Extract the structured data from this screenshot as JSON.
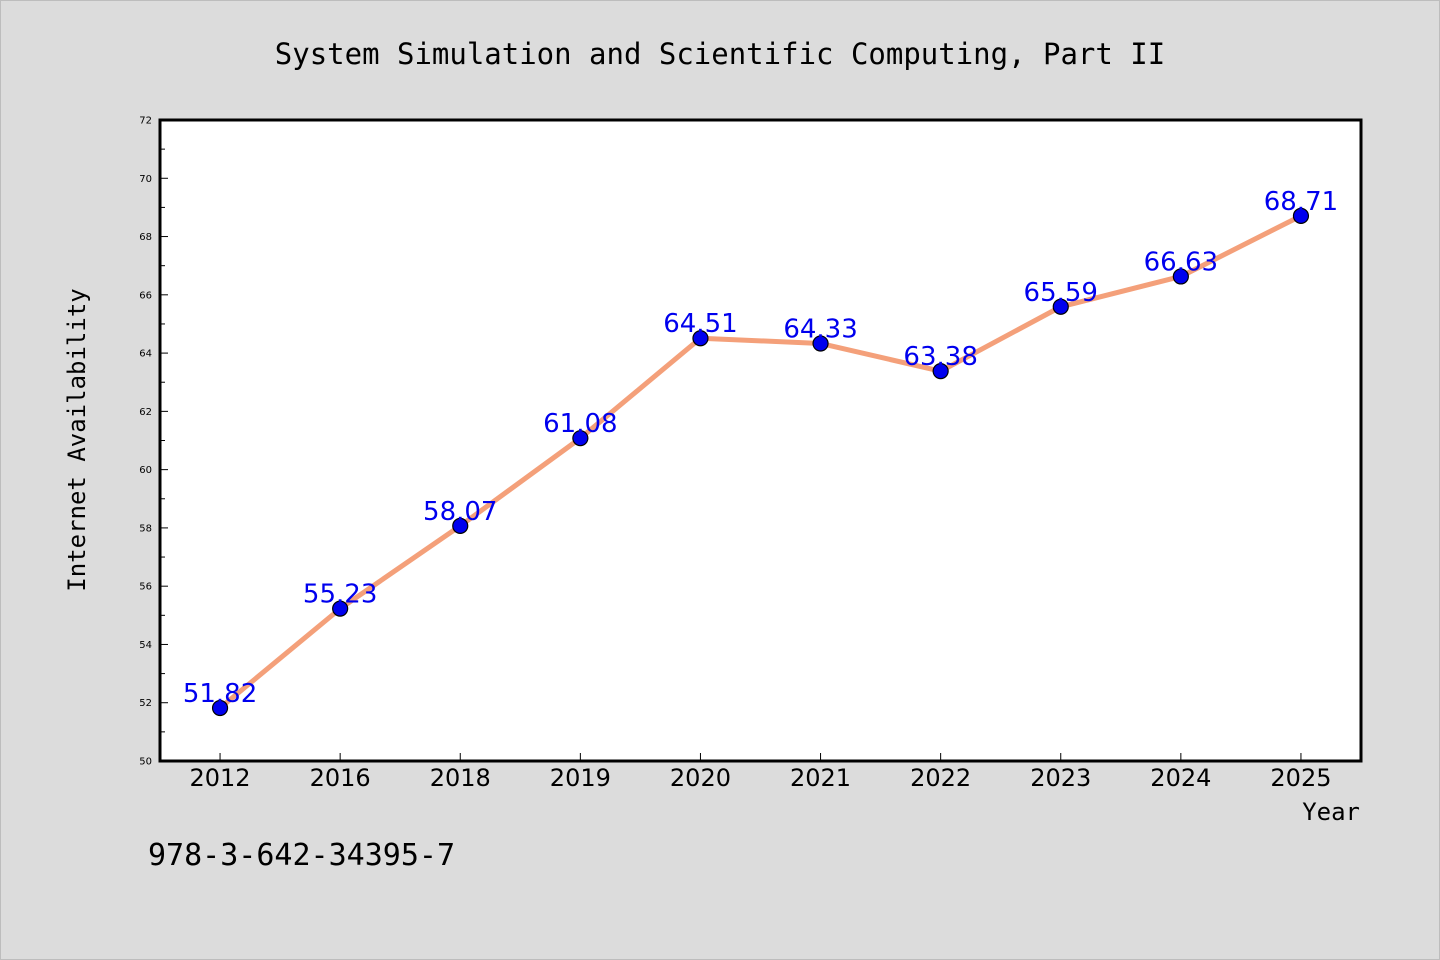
{
  "chart_data": {
    "type": "line",
    "title": "System Simulation and Scientific Computing, Part II",
    "xlabel": "Year",
    "ylabel": "Internet Availability",
    "categories": [
      "2012",
      "2016",
      "2018",
      "2019",
      "2020",
      "2021",
      "2022",
      "2023",
      "2024",
      "2025"
    ],
    "series": [
      {
        "values": [
          51.82,
          55.23,
          58.07,
          61.08,
          64.51,
          64.33,
          63.38,
          65.59,
          66.63,
          68.71
        ],
        "labels": [
          "51.82",
          "55.23",
          "58.07",
          "61.08",
          "64.51",
          "64.33",
          "63.38",
          "65.59",
          "66.63",
          "68.71"
        ]
      }
    ],
    "ylim": [
      50,
      72
    ],
    "yticks": [
      50,
      52,
      54,
      56,
      58,
      60,
      62,
      64,
      66,
      68,
      70,
      72
    ],
    "grid": false,
    "legend": "none",
    "colors": {
      "background": "#dcdcdc",
      "plot_area": "#ffffff",
      "line": "#f4a07a",
      "marker": "#0000ee",
      "data_label": "#0000ee",
      "text": "#000000"
    }
  },
  "caption": "978-3-642-34395-7"
}
